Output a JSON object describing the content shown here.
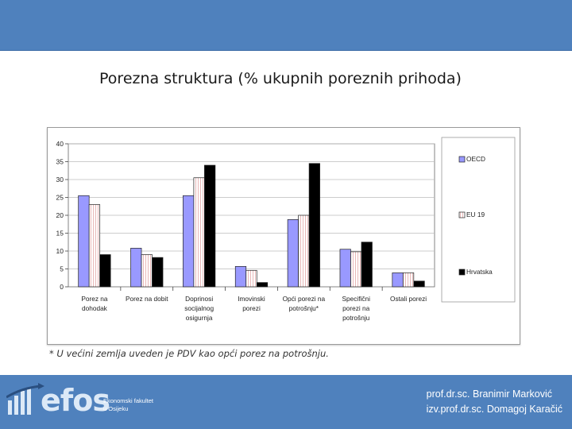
{
  "slide": {
    "title": "Porezna struktura (% ukupnih poreznih prihoda)",
    "footnote": "* U većini zemlja uveden je PDV kao opći porez na potrošnju.",
    "footer": {
      "logo_word": "efos",
      "faculty_line1": "Ekonomski fakultet",
      "faculty_line2": "u Osijeku",
      "author1": "prof.dr.sc. Branimir Marković",
      "author2": "izv.prof.dr.sc. Domagoj Karačić"
    }
  },
  "colors": {
    "band": "#4f81bd",
    "oecd": "#9999ff",
    "eu19": "#ffffff",
    "hrvatska": "#000000",
    "plot_bg": "#ffffff"
  },
  "chart_data": {
    "type": "bar",
    "title": "",
    "xlabel": "",
    "ylabel": "",
    "ylim": [
      0,
      40
    ],
    "yticks": [
      0,
      5,
      10,
      15,
      20,
      25,
      30,
      35,
      40
    ],
    "grid": true,
    "legend_position": "right",
    "categories": [
      [
        "Porez na",
        "dohodak"
      ],
      [
        "Porez na dobit"
      ],
      [
        "Doprinosi",
        "socijalnog",
        "osigurnja"
      ],
      [
        "Imovinski",
        "porezi"
      ],
      [
        "Opći porezi na",
        "potrošnju*"
      ],
      [
        "Specifični",
        "porezi na",
        "potrošnju"
      ],
      [
        "Ostali porezi"
      ]
    ],
    "series": [
      {
        "name": "OECD",
        "values": [
          25.5,
          10.8,
          25.5,
          5.7,
          18.8,
          10.5,
          3.9
        ]
      },
      {
        "name": "EU 19",
        "values": [
          23.0,
          9.0,
          30.5,
          4.6,
          20.0,
          9.8,
          3.9
        ]
      },
      {
        "name": "Hrvatska",
        "values": [
          9.0,
          8.2,
          34.0,
          1.2,
          34.5,
          12.5,
          1.6
        ]
      }
    ]
  }
}
